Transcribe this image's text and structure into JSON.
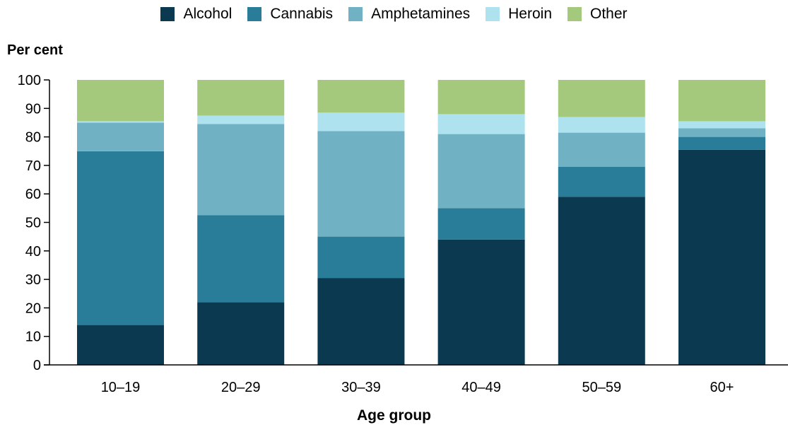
{
  "chart_data": {
    "type": "bar",
    "stacked": true,
    "xlabel": "Age group",
    "ylabel": "Per cent",
    "ylim": [
      0,
      100
    ],
    "yticks": [
      0,
      10,
      20,
      30,
      40,
      50,
      60,
      70,
      80,
      90,
      100
    ],
    "categories": [
      "10–19",
      "20–29",
      "30–39",
      "40–49",
      "50–59",
      "60+"
    ],
    "legend_position": "top",
    "grid": false,
    "series": [
      {
        "name": "Alcohol",
        "color": "#0b3a50",
        "values": [
          14,
          22,
          30.5,
          44,
          59,
          75.5
        ]
      },
      {
        "name": "Cannabis",
        "color": "#2a7d98",
        "values": [
          61,
          30.5,
          14.5,
          11,
          10.5,
          4.5
        ]
      },
      {
        "name": "Amphetamines",
        "color": "#70b2c3",
        "values": [
          10,
          32,
          37,
          26,
          12,
          3
        ]
      },
      {
        "name": "Heroin",
        "color": "#aee2ee",
        "values": [
          0.5,
          3,
          6.5,
          7,
          5.5,
          2.5
        ]
      },
      {
        "name": "Other",
        "color": "#a4c97c",
        "values": [
          14.5,
          12.5,
          11.5,
          12,
          13,
          14.5
        ]
      }
    ]
  }
}
